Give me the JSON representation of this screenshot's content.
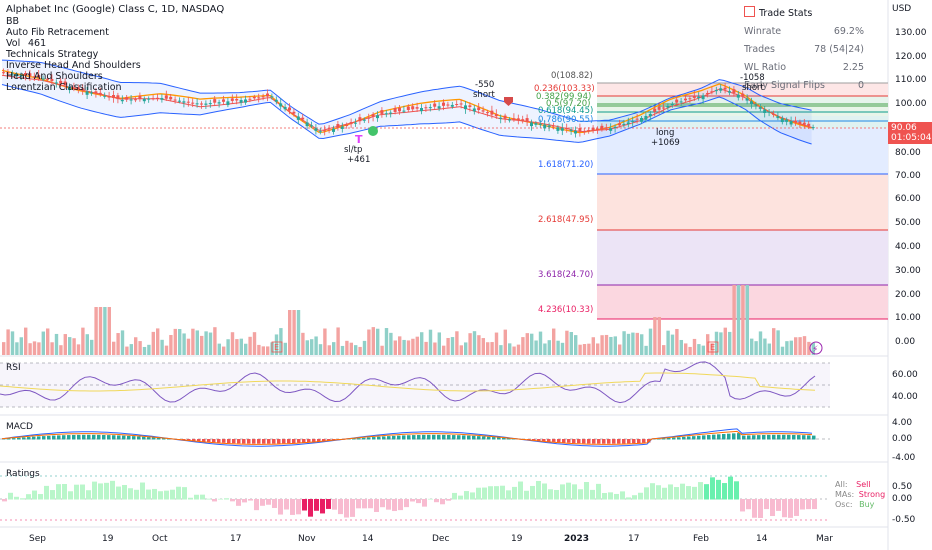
{
  "legend": {
    "title": "Alphabet Inc (Google) Class C, 1D, NASDAQ",
    "lines": [
      "BB",
      "Auto Fib Retracement",
      "Vol",
      "Technicals Strategy",
      "Inverse Head And Shoulders",
      "Head And Shoulders",
      "Lorentzian Classification"
    ],
    "vol_overlay": "461"
  },
  "currency": "USD",
  "price_ticks": [
    "130.00",
    "120.00",
    "110.00",
    "100.00",
    "90.00",
    "80.00",
    "70.00",
    "60.00",
    "50.00",
    "40.00",
    "30.00",
    "20.00",
    "10.00",
    "0.00"
  ],
  "last_price": "90.06",
  "countdown": "01:05:04",
  "trade_stats": {
    "title": "Trade Stats",
    "rows": [
      {
        "k": "Winrate",
        "v": "69.2%"
      },
      {
        "k": "Trades",
        "v": "78 (54|24)"
      },
      {
        "k": "WL Ratio",
        "v": "2.25"
      },
      {
        "k": "Early Signal Flips",
        "v": "0"
      }
    ]
  },
  "fib_levels": [
    "0(108.82)",
    "0.236(103.33)",
    "0.382(99.94)",
    "0.5(97.20)",
    "0.618(94.45)",
    "0.786(90.55)",
    "1.618(71.20)",
    "2.618(47.95)",
    "3.618(24.70)",
    "4.236(10.33)"
  ],
  "annotations": {
    "a1": "-550",
    "a2": "short",
    "a3": "sl/tp",
    "a4": "+461",
    "a5": "long",
    "a6": "+1069",
    "a7": "-1058",
    "a8": "short"
  },
  "rsi": {
    "title": "RSI",
    "ticks": [
      "60.00",
      "40.00"
    ]
  },
  "macd": {
    "title": "MACD",
    "ticks": [
      "4.00",
      "0.00",
      "-4.00"
    ]
  },
  "ratings": {
    "title": "Ratings",
    "ticks": [
      "0.50",
      "0.00",
      "-0.50"
    ],
    "legend": [
      {
        "k": "All:",
        "v": "Sell"
      },
      {
        "k": "MAs:",
        "v": "Strong"
      },
      {
        "k": "Osc:",
        "v": "Buy"
      }
    ]
  },
  "x_ticks": [
    "Sep",
    "19",
    "Oct",
    "17",
    "Nov",
    "14",
    "Dec",
    "19",
    "2023",
    "17",
    "Feb",
    "14",
    "Mar"
  ],
  "colors": {
    "up": "#26a69a",
    "down": "#ef5350",
    "bb": "#2962ff",
    "ema": "#ff9800"
  }
}
